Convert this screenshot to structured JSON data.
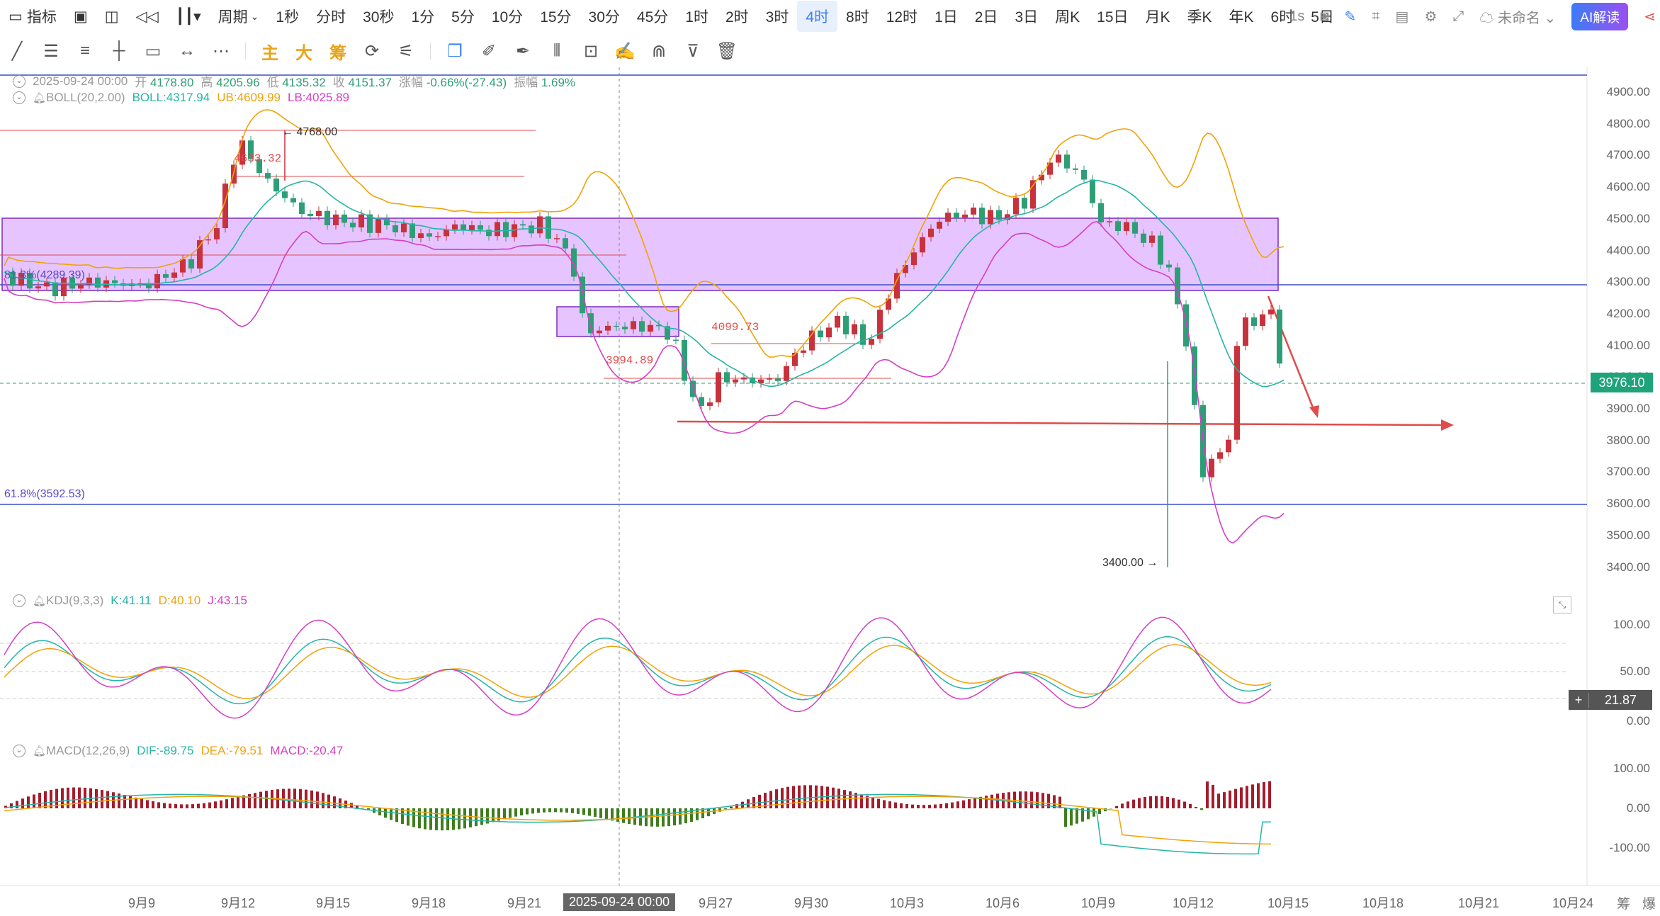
{
  "toolbar": {
    "indicator_label": "指标",
    "period_label": "周期",
    "periods": [
      "1秒",
      "分时",
      "30秒",
      "1分",
      "5分",
      "10分",
      "15分",
      "30分",
      "45分",
      "1时",
      "2时",
      "3时",
      "4时",
      "8时",
      "12时",
      "1日",
      "2日",
      "3日",
      "周K",
      "15日",
      "月K",
      "季K",
      "年K",
      "6时",
      "5日"
    ],
    "active_period": "4时",
    "interval_label": "1s",
    "workspace_label": "未命名",
    "ai_label": "AI解读"
  },
  "drawing_tools": {
    "main_label": "主",
    "big_label": "大",
    "chip_label": "筹"
  },
  "main_legend": {
    "date": "2025-09-24 00:00",
    "open_label": "开",
    "open": "4178.80",
    "high_label": "高",
    "high": "4205.96",
    "low_label": "低",
    "low": "4135.32",
    "close_label": "收",
    "close": "4151.37",
    "change_label": "涨幅",
    "change": "-0.66%(-27.43)",
    "amp_label": "振幅",
    "amp": "1.69%"
  },
  "boll": {
    "name": "BOLL(20,2.00)",
    "mid": "BOLL:4317.94",
    "ub": "UB:4609.99",
    "lb": "LB:4025.89",
    "colors": {
      "mid": "#26b5a6",
      "ub": "#f0a30a",
      "lb": "#d63ec5"
    }
  },
  "kdj": {
    "name": "KDJ(9,3,3)",
    "k": "K:41.11",
    "d": "D:40.10",
    "j": "J:43.15",
    "tag_value": "21.87"
  },
  "macd": {
    "name": "MACD(12,26,9)",
    "dif": "DIF:-89.75",
    "dea": "DEA:-79.51",
    "macd": "MACD:-20.47"
  },
  "price_axis": [
    "4900.00",
    "4800.00",
    "4700.00",
    "4600.00",
    "4500.00",
    "4400.00",
    "4300.00",
    "4200.00",
    "4100.00",
    "4000.00",
    "3900.00",
    "3800.00",
    "3700.00",
    "3600.00",
    "3500.00",
    "3400.00"
  ],
  "current_price": "3976.10",
  "kdj_axis": [
    "100.00",
    "50.00",
    "0.00"
  ],
  "macd_axis": [
    "100.00",
    "0.00",
    "-100.00"
  ],
  "time_axis": [
    "9月9",
    "9月12",
    "9月15",
    "9月18",
    "9月21",
    "2025-09-24 00:00",
    "9月27",
    "9月30",
    "10月3",
    "10月6",
    "10月9",
    "10月12",
    "10月15",
    "10月18",
    "10月21",
    "10月24"
  ],
  "annotations": {
    "high_mark": "4768.00",
    "low_mark": "3400.00",
    "level_4633": "4633.32",
    "level_4099": "4099.73",
    "level_3994": "3994.89",
    "fib_813": "81.3%(4289.39)",
    "fib_618": "61.8%(3592.53)"
  },
  "bottom_right": [
    "筹",
    "爆"
  ],
  "colors": {
    "up": "#c8323c",
    "down": "#2e9e76",
    "accent": "#3b82f6",
    "zone": "#c77dff"
  }
}
